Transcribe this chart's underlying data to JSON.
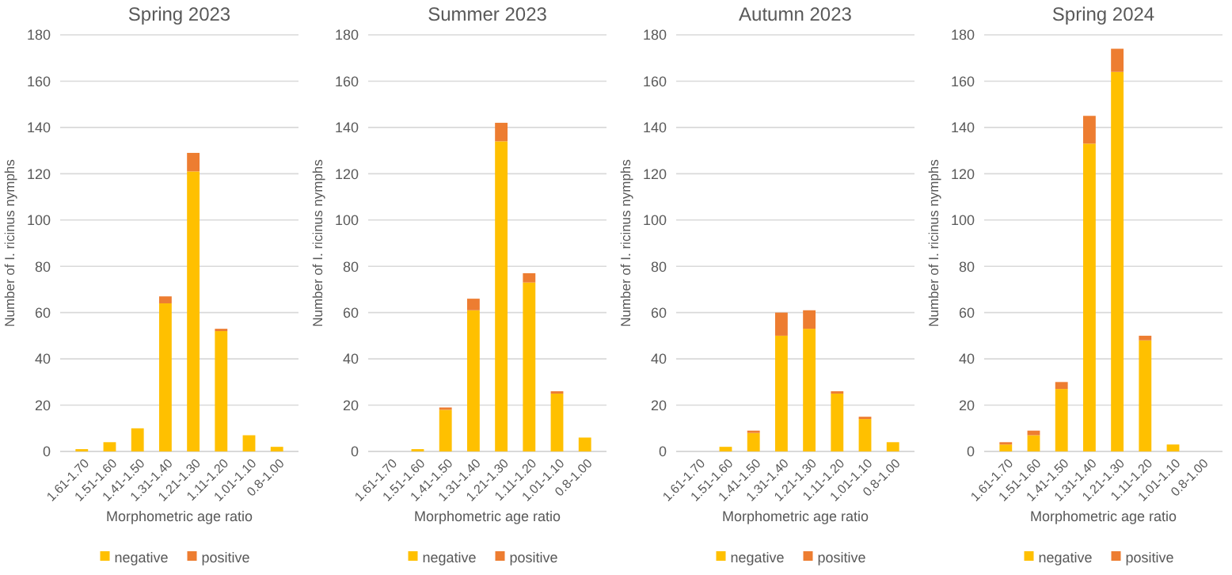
{
  "chart_data": [
    {
      "type": "bar",
      "title": "Spring 2023",
      "xlabel": "Morphometric age ratio",
      "ylabel": "Number of I. ricinus nymphs",
      "categories": [
        "1.61-1.70",
        "1.51-1.60",
        "1.41-1.50",
        "1.31-1.40",
        "1.21-1.30",
        "1.11-1.20",
        "1.01-1.10",
        "0.8-1.00"
      ],
      "stacked": true,
      "ylim": [
        0,
        180
      ],
      "yticks": [
        0,
        20,
        40,
        60,
        80,
        100,
        120,
        140,
        160,
        180
      ],
      "grid": "y",
      "legend": "bottom",
      "series": [
        {
          "name": "negative",
          "color": "#ffc000",
          "values": [
            1,
            4,
            10,
            64,
            121,
            52,
            7,
            2
          ]
        },
        {
          "name": "positive",
          "color": "#ed7d31",
          "values": [
            0,
            0,
            0,
            3,
            8,
            1,
            0,
            0
          ]
        }
      ]
    },
    {
      "type": "bar",
      "title": "Summer 2023",
      "xlabel": "Morphometric age ratio",
      "ylabel": "Number of I. ricinus nymphs",
      "categories": [
        "1.61-1.70",
        "1.51-1.60",
        "1.41-1.50",
        "1.31-1.40",
        "1.21-1.30",
        "1.11-1.20",
        "1.01-1.10",
        "0.8-1.00"
      ],
      "stacked": true,
      "ylim": [
        0,
        180
      ],
      "yticks": [
        0,
        20,
        40,
        60,
        80,
        100,
        120,
        140,
        160,
        180
      ],
      "grid": "y",
      "legend": "bottom",
      "series": [
        {
          "name": "negative",
          "color": "#ffc000",
          "values": [
            0,
            1,
            18,
            61,
            134,
            73,
            25,
            6
          ]
        },
        {
          "name": "positive",
          "color": "#ed7d31",
          "values": [
            0,
            0,
            1,
            5,
            8,
            4,
            1,
            0
          ]
        }
      ]
    },
    {
      "type": "bar",
      "title": "Autumn 2023",
      "xlabel": "Morphometric age ratio",
      "ylabel": "Number of I. ricinus nymphs",
      "categories": [
        "1.61-1.70",
        "1.51-1.60",
        "1.41-1.50",
        "1.31-1.40",
        "1.21-1.30",
        "1.11-1.20",
        "1.01-1.10",
        "0.8-1.00"
      ],
      "stacked": true,
      "ylim": [
        0,
        180
      ],
      "yticks": [
        0,
        20,
        40,
        60,
        80,
        100,
        120,
        140,
        160,
        180
      ],
      "grid": "y",
      "legend": "bottom",
      "series": [
        {
          "name": "negative",
          "color": "#ffc000",
          "values": [
            0,
            2,
            8,
            50,
            53,
            25,
            14,
            4
          ]
        },
        {
          "name": "positive",
          "color": "#ed7d31",
          "values": [
            0,
            0,
            1,
            10,
            8,
            1,
            1,
            0
          ]
        }
      ]
    },
    {
      "type": "bar",
      "title": "Spring 2024",
      "xlabel": "Morphometric age ratio",
      "ylabel": "Number of I. ricinus nymphs",
      "categories": [
        "1.61-1.70",
        "1.51-1.60",
        "1.41-1.50",
        "1.31-1.40",
        "1.21-1.30",
        "1.11-1.20",
        "1.01-1.10",
        "0.8-1.00"
      ],
      "stacked": true,
      "ylim": [
        0,
        180
      ],
      "yticks": [
        0,
        20,
        40,
        60,
        80,
        100,
        120,
        140,
        160,
        180
      ],
      "grid": "y",
      "legend": "bottom",
      "series": [
        {
          "name": "negative",
          "color": "#ffc000",
          "values": [
            3,
            7,
            27,
            133,
            164,
            48,
            3,
            0
          ]
        },
        {
          "name": "positive",
          "color": "#ed7d31",
          "values": [
            1,
            2,
            3,
            12,
            10,
            2,
            0,
            0
          ]
        }
      ]
    }
  ]
}
